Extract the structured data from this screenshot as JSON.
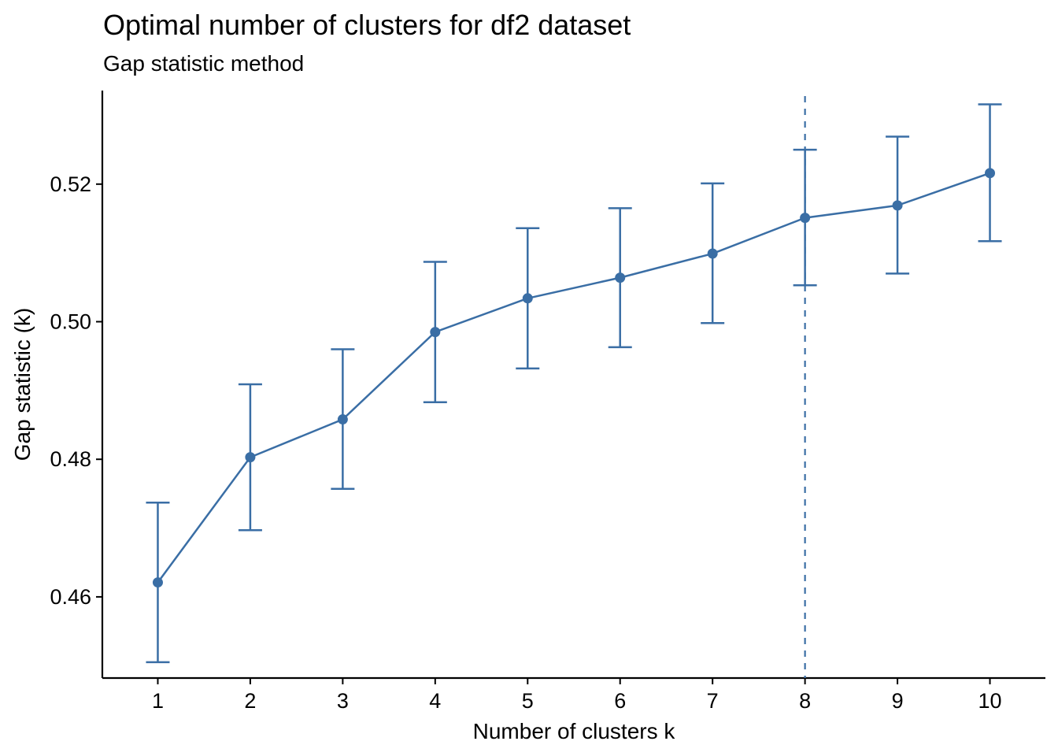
{
  "chart_data": {
    "type": "line",
    "title": "Optimal number of clusters for df2 dataset",
    "subtitle": "Gap statistic method",
    "xlabel": "Number of clusters k",
    "ylabel": "Gap statistic (k)",
    "x": [
      1,
      2,
      3,
      4,
      5,
      6,
      7,
      8,
      9,
      10
    ],
    "x_tick_labels": [
      "1",
      "2",
      "3",
      "4",
      "5",
      "6",
      "7",
      "8",
      "9",
      "10"
    ],
    "y_ticks": [
      0.46,
      0.48,
      0.5,
      0.52
    ],
    "y_tick_labels": [
      "0.46",
      "0.48",
      "0.50",
      "0.52"
    ],
    "ylim": [
      0.4482,
      0.5336
    ],
    "series": [
      {
        "values": [
          0.4621,
          0.4803,
          0.4858,
          0.4985,
          0.5034,
          0.5064,
          0.5099,
          0.5151,
          0.5169,
          0.5216
        ],
        "error_low": [
          0.4505,
          0.4697,
          0.4757,
          0.4883,
          0.4932,
          0.4963,
          0.4998,
          0.5053,
          0.507,
          0.5117
        ],
        "error_high": [
          0.4737,
          0.4909,
          0.496,
          0.5087,
          0.5136,
          0.5165,
          0.5201,
          0.525,
          0.5269,
          0.5316
        ]
      }
    ],
    "reference_line": {
      "axis": "x",
      "value": 8,
      "style": "dashed"
    },
    "color": "#3A6EA5",
    "grid": false,
    "legend": "none"
  }
}
